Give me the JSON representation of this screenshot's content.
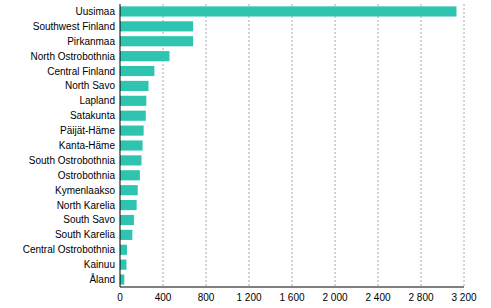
{
  "chart_data": {
    "type": "bar",
    "orientation": "horizontal",
    "categories": [
      "Uusimaa",
      "Southwest Finland",
      "Pirkanmaa",
      "North Ostrobothnia",
      "Central Finland",
      "North Savo",
      "Lapland",
      "Satakunta",
      "Päijät-Häme",
      "Kanta-Häme",
      "South Ostrobothnia",
      "Ostrobothnia",
      "Kymenlaakso",
      "North Karelia",
      "South Savo",
      "South Karelia",
      "Central Ostrobothnia",
      "Kainuu",
      "Åland"
    ],
    "values": [
      3130,
      680,
      680,
      460,
      320,
      265,
      245,
      240,
      220,
      210,
      200,
      185,
      165,
      155,
      130,
      115,
      65,
      60,
      40
    ],
    "color": "#2ec4b0",
    "xlim": [
      0,
      3200
    ],
    "xticks": [
      0,
      400,
      800,
      {
        "value": 1200,
        "label": "1 200"
      },
      {
        "value": 1600,
        "label": "1 600"
      },
      {
        "value": 2000,
        "label": "2 000"
      },
      {
        "value": 2400,
        "label": "2 400"
      },
      {
        "value": 2800,
        "label": "2 800"
      },
      {
        "value": 3200,
        "label": "3 200"
      }
    ],
    "grid": true
  }
}
